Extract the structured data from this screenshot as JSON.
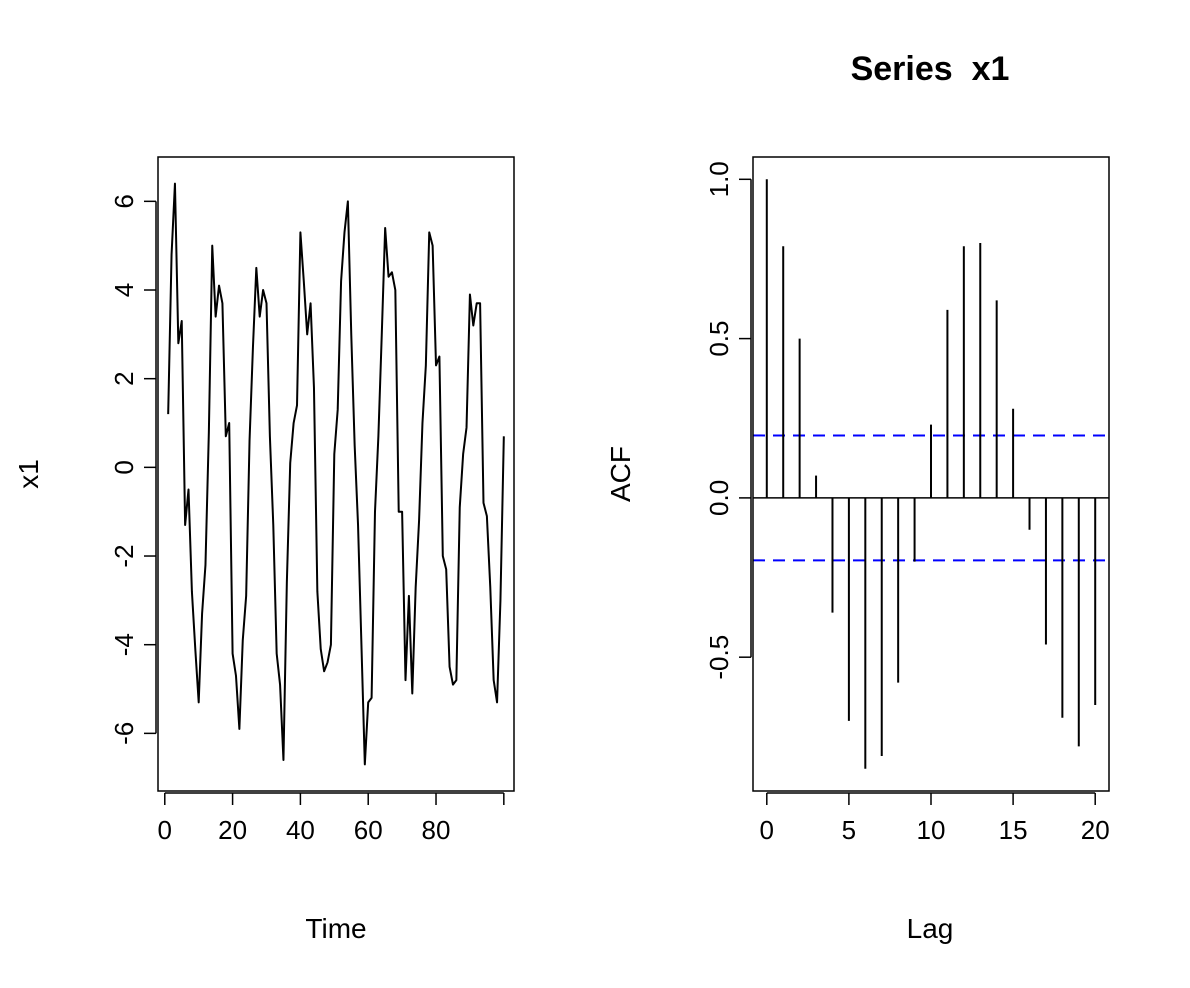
{
  "chart_data": [
    {
      "type": "line",
      "title": "",
      "xlabel": "Time",
      "ylabel": "x1",
      "xlim": [
        -2,
        103
      ],
      "ylim": [
        -7.3,
        7
      ],
      "x_ticks": [
        0,
        20,
        40,
        60,
        80,
        100
      ],
      "x_tick_labels": [
        "0",
        "20",
        "40",
        "60",
        "80",
        ""
      ],
      "y_ticks": [
        -6,
        -4,
        -2,
        0,
        2,
        4,
        6
      ],
      "y_tick_labels": [
        "-6",
        "-4",
        "-2",
        "0",
        "2",
        "4",
        "6"
      ],
      "grid": false,
      "series": [
        {
          "x": [
            1,
            2,
            3,
            4,
            5,
            6,
            7,
            8,
            9,
            10,
            11,
            12,
            13,
            14,
            15,
            16,
            17,
            18,
            19,
            20,
            21,
            22,
            23,
            24,
            25,
            26,
            27,
            28,
            29,
            30,
            31,
            32,
            33,
            34,
            35,
            36,
            37,
            38,
            39,
            40,
            41,
            42,
            43,
            44,
            45,
            46,
            47,
            48,
            49,
            50,
            51,
            52,
            53,
            54,
            55,
            56,
            57,
            58,
            59,
            60,
            61,
            62,
            63,
            64,
            65,
            66,
            67,
            68,
            69,
            70,
            71,
            72,
            73,
            74,
            75,
            76,
            77,
            78,
            79,
            80,
            81,
            82,
            83,
            84,
            85,
            86,
            87,
            88,
            89,
            90,
            91,
            92,
            93,
            94,
            95,
            96,
            97,
            98,
            99,
            100
          ],
          "values": [
            1.2,
            4.8,
            6.4,
            2.8,
            3.3,
            -1.3,
            -0.5,
            -2.8,
            -4.1,
            -5.3,
            -3.3,
            -2.2,
            0.8,
            5.0,
            3.4,
            4.1,
            3.7,
            0.7,
            1.0,
            -4.2,
            -4.7,
            -5.9,
            -3.9,
            -2.9,
            0.6,
            2.7,
            4.5,
            3.4,
            4.0,
            3.7,
            0.7,
            -1.3,
            -4.2,
            -4.9,
            -6.6,
            -2.6,
            0.1,
            1.0,
            1.4,
            5.3,
            4.2,
            3.0,
            3.7,
            1.8,
            -2.8,
            -4.1,
            -4.6,
            -4.4,
            -4.0,
            0.3,
            1.3,
            4.2,
            5.3,
            6.0,
            3.0,
            0.5,
            -1.3,
            -4.0,
            -6.7,
            -5.3,
            -5.2,
            -1.0,
            0.7,
            3.0,
            5.4,
            4.3,
            4.4,
            4.0,
            -1.0,
            -1.0,
            -4.8,
            -2.9,
            -5.1,
            -2.7,
            -1.2,
            1.0,
            2.3,
            5.3,
            5.0,
            2.3,
            2.5,
            -2.0,
            -2.3,
            -4.5,
            -4.9,
            -4.8,
            -0.9,
            0.3,
            0.9,
            3.9,
            3.2,
            3.7,
            3.7,
            -0.8,
            -1.1,
            -2.7,
            -4.8,
            -5.3,
            -3.0,
            0.7
          ]
        }
      ]
    },
    {
      "type": "bar",
      "title": "Series  x1",
      "xlabel": "Lag",
      "ylabel": "ACF",
      "xlim": [
        -0.84,
        20.84
      ],
      "ylim": [
        -0.92,
        1.07
      ],
      "x_ticks": [
        0,
        5,
        10,
        15,
        20
      ],
      "x_tick_labels": [
        "0",
        "5",
        "10",
        "15",
        "20"
      ],
      "y_ticks": [
        -0.5,
        0.0,
        0.5,
        1.0
      ],
      "y_tick_labels": [
        "-0.5",
        "0.0",
        "0.5",
        "1.0"
      ],
      "grid": false,
      "zero_line": true,
      "confidence_bound": 0.196,
      "confidence_color": "#0000ff",
      "lags": [
        0,
        1,
        2,
        3,
        4,
        5,
        6,
        7,
        8,
        9,
        10,
        11,
        12,
        13,
        14,
        15,
        16,
        17,
        18,
        19,
        20
      ],
      "values": [
        1.0,
        0.79,
        0.5,
        0.07,
        -0.36,
        -0.7,
        -0.85,
        -0.81,
        -0.58,
        -0.2,
        0.23,
        0.59,
        0.79,
        0.8,
        0.62,
        0.28,
        -0.1,
        -0.46,
        -0.69,
        -0.78,
        -0.65
      ]
    }
  ]
}
